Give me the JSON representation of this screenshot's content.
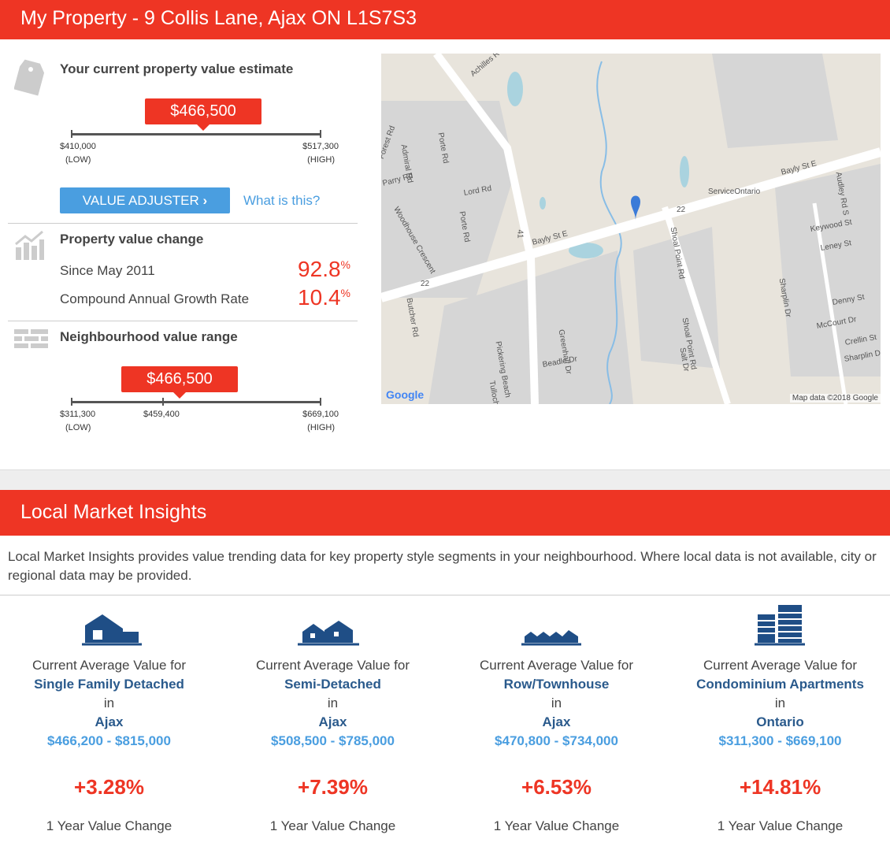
{
  "header": {
    "title": "My Property - 9 Collis Lane, Ajax ON L1S7S3"
  },
  "estimate": {
    "title": "Your current property value estimate",
    "value": "$466,500",
    "low": "$410,000",
    "low_label": "(LOW)",
    "high": "$517,300",
    "high_label": "(HIGH)",
    "button": "VALUE ADJUSTER",
    "link": "What is this?"
  },
  "change": {
    "title": "Property value change",
    "rows": [
      {
        "label": "Since May 2011",
        "value": "92.8",
        "unit": "%"
      },
      {
        "label": "Compound Annual Growth Rate",
        "value": "10.4",
        "unit": "%"
      }
    ]
  },
  "neighbourhood": {
    "title": "Neighbourhood value range",
    "value": "$466,500",
    "low": "$311,300",
    "low_label": "(LOW)",
    "mid": "$459,400",
    "high": "$669,100",
    "high_label": "(HIGH)"
  },
  "map": {
    "labels": [
      "Achilles Rd",
      "Porte Rd",
      "Admiral Rd",
      "Forest Rd",
      "Parry Rd",
      "Lord Rd",
      "Woodhouse Crescent",
      "Porte Rd",
      "Bayly St E",
      "Bayly St E",
      "ServiceOntario",
      "Shoal Point Rd",
      "Shoal Point Rd",
      "Audley Rd S",
      "Keywood St",
      "Leney St",
      "Sharplin Dr",
      "Denny St",
      "McCourt Dr",
      "Crellin St",
      "Sharplin Dr",
      "Butcher Rd",
      "Pickering Beach",
      "Greenhalf Dr",
      "Beadle Dr",
      "Tulloch Dr",
      "Salt Dr",
      "41",
      "22",
      "22"
    ],
    "logo": "Google",
    "credit": "Map data ©2018 Google"
  },
  "insights": {
    "title": "Local Market Insights",
    "description": "Local Market Insights provides value trending data for key property style segments in your neighbourhood. Where local data is not available, city or regional data may be provided.",
    "cards": [
      {
        "prefix": "Current Average Value for",
        "type": "Single Family Detached",
        "in": "in",
        "location": "Ajax",
        "range": "$466,200 - $815,000",
        "change": "+3.28",
        "unit": "%",
        "footer": "1 Year Value Change"
      },
      {
        "prefix": "Current Average Value for",
        "type": "Semi-Detached",
        "in": "in",
        "location": "Ajax",
        "range": "$508,500 - $785,000",
        "change": "+7.39",
        "unit": "%",
        "footer": "1 Year Value Change"
      },
      {
        "prefix": "Current Average Value for",
        "type": "Row/Townhouse",
        "in": "in",
        "location": "Ajax",
        "range": "$470,800 - $734,000",
        "change": "+6.53",
        "unit": "%",
        "footer": "1 Year Value Change"
      },
      {
        "prefix": "Current Average Value for",
        "type": "Condominium Apartments",
        "in": "in",
        "location": "Ontario",
        "range": "$311,300 - $669,100",
        "change": "+14.81",
        "unit": "%",
        "footer": "1 Year Value Change"
      }
    ]
  }
}
